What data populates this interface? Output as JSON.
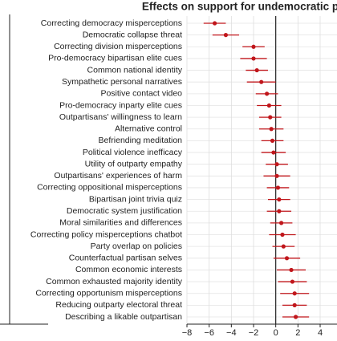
{
  "chart_data": {
    "type": "forest",
    "title": "Effects on support for undemocratic practices",
    "orientation": "horizontal",
    "categories": [
      "Correcting democracy misperceptions",
      "Democratic collapse threat",
      "Correcting division misperceptions",
      "Pro-democracy bipartisan elite cues",
      "Common national identity",
      "Sympathetic personal narratives",
      "Positive contact video",
      "Pro-democracy inparty elite cues",
      "Outpartisans' willingness to learn",
      "Alternative control",
      "Befriending meditation",
      "Political violence inefficacy",
      "Utility of outparty empathy",
      "Outpartisans' experiences of harm",
      "Correcting oppositional misperceptions",
      "Bipartisan joint trivia quiz",
      "Democratic system justification",
      "Moral similarities and differences",
      "Correcting policy misperceptions chatbot",
      "Party overlap on policies",
      "Counterfactual partisan selves",
      "Common economic interests",
      "Common exhausted majority identity",
      "Correcting opportunism misperceptions",
      "Reducing outparty electoral threat",
      "Describing a likable outpartisan"
    ],
    "series": [
      {
        "color": "#c0161b",
        "values": [
          -5.5,
          -4.5,
          -2.0,
          -2.0,
          -1.7,
          -1.3,
          -0.8,
          -0.6,
          -0.5,
          -0.4,
          -0.3,
          -0.2,
          0.1,
          0.1,
          0.2,
          0.3,
          0.3,
          0.5,
          0.6,
          0.7,
          1.0,
          1.4,
          1.5,
          1.7,
          1.7,
          1.8
        ],
        "errors": [
          1.0,
          1.2,
          1.0,
          1.2,
          1.0,
          1.3,
          1.0,
          1.1,
          1.0,
          1.1,
          1.0,
          1.1,
          1.0,
          1.2,
          1.0,
          1.0,
          1.1,
          1.0,
          1.2,
          1.0,
          1.2,
          1.3,
          1.3,
          1.3,
          1.1,
          1.2
        ]
      }
    ],
    "xlim": [
      -8,
      4
    ],
    "xticks": [
      {
        "value": -8,
        "label": "−8"
      },
      {
        "value": -6,
        "label": "−6"
      },
      {
        "value": -4,
        "label": "−4"
      },
      {
        "value": -2,
        "label": "−2"
      },
      0,
      2,
      4
    ],
    "reference_line": 0,
    "grid": true
  }
}
